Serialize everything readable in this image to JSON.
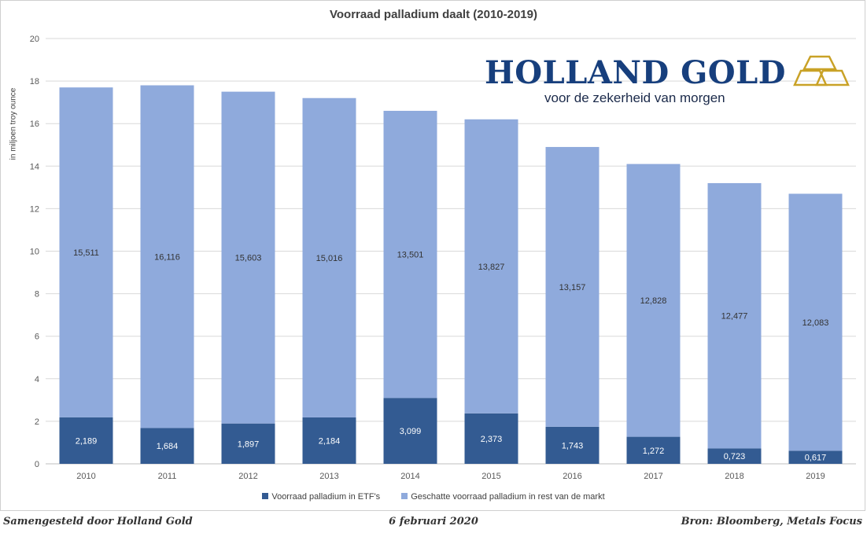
{
  "chart_data": {
    "type": "bar",
    "stacked": true,
    "title": "Voorraad palladium daalt (2010-2019)",
    "ylabel": "in miljoen troy ounce",
    "xlabel": "",
    "ylim": [
      0,
      20
    ],
    "yticks": [
      "0",
      "2",
      "4",
      "6",
      "8",
      "10",
      "12",
      "14",
      "16",
      "18",
      "20"
    ],
    "categories": [
      "2010",
      "2011",
      "2012",
      "2013",
      "2014",
      "2015",
      "2016",
      "2017",
      "2018",
      "2019"
    ],
    "series": [
      {
        "name": "Voorraad palladium in ETF's",
        "color": "#335b92",
        "values": [
          2.189,
          1.684,
          1.897,
          2.184,
          3.099,
          2.373,
          1.743,
          1.272,
          0.723,
          0.617
        ],
        "labels": [
          "2,189",
          "1,684",
          "1,897",
          "2,184",
          "3,099",
          "2,373",
          "1,743",
          "1,272",
          "0,723",
          "0,617"
        ]
      },
      {
        "name": "Geschatte voorraad palladium in rest van de markt",
        "color": "#8faadc",
        "values": [
          15.511,
          16.116,
          15.603,
          15.016,
          13.501,
          13.827,
          13.157,
          12.828,
          12.477,
          12.083
        ],
        "labels": [
          "15,511",
          "16,116",
          "15,603",
          "15,016",
          "13,501",
          "13,827",
          "13,157",
          "12,828",
          "12,477",
          "12,083"
        ]
      }
    ],
    "grid": true,
    "legend": "bottom"
  },
  "logo": {
    "name": "HOLLAND GOLD",
    "tagline": "voor de zekerheid van morgen",
    "color": "#173f7d",
    "mark_color": "#c9a227"
  },
  "footer": {
    "left": "Samengesteld door Holland Gold",
    "center": "6 februari 2020",
    "right": "Bron: Bloomberg, Metals Focus"
  }
}
